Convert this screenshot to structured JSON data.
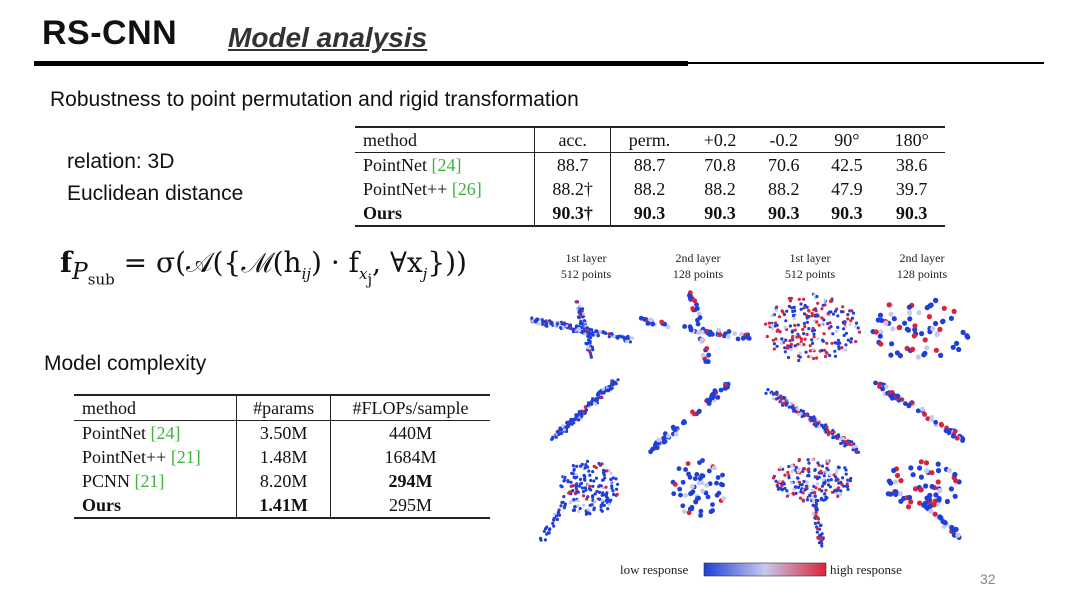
{
  "title": "RS-CNN",
  "subtitle": "Model analysis",
  "section_robustness": "Robustness to point permutation and rigid transformation",
  "relation_line1": "relation: 3D",
  "relation_line2": "Euclidean distance",
  "formula": {
    "lhs": "f",
    "lhs_sub": "P",
    "lhs_subsub": "sub",
    "rhs": "= σ(𝒜({ℳ(h",
    "rhs_sub1": "ij",
    "rhs_mid": ") · f",
    "rhs_sub2": "x",
    "rhs_sub2b": "j",
    "rhs_end": ", ∀x",
    "rhs_sub3": "j",
    "rhs_close": "}))"
  },
  "robustness_table": {
    "headers": [
      "method",
      "acc.",
      "perm.",
      "+0.2",
      "-0.2",
      "90°",
      "180°"
    ],
    "rows": [
      {
        "method": "PointNet ",
        "cite": "[24]",
        "values": [
          "88.7",
          "88.7",
          "70.8",
          "70.6",
          "42.5",
          "38.6"
        ],
        "bold": false
      },
      {
        "method": "PointNet++ ",
        "cite": "[26]",
        "values": [
          "88.2†",
          "88.2",
          "88.2",
          "88.2",
          "47.9",
          "39.7"
        ],
        "bold": false
      },
      {
        "method": "Ours",
        "cite": "",
        "values": [
          "90.3†",
          "90.3",
          "90.3",
          "90.3",
          "90.3",
          "90.3"
        ],
        "bold": true
      }
    ]
  },
  "section_complexity": "Model complexity",
  "complexity_table": {
    "headers": [
      "method",
      "#params",
      "#FLOPs/sample"
    ],
    "rows": [
      {
        "method": "PointNet ",
        "cite": "[24]",
        "params": "3.50M",
        "flops": "440M",
        "params_bold": false,
        "flops_bold": false,
        "method_bold": false
      },
      {
        "method": "PointNet++ ",
        "cite": "[21]",
        "params": "1.48M",
        "flops": "1684M",
        "params_bold": false,
        "flops_bold": false,
        "method_bold": false
      },
      {
        "method": "PCNN ",
        "cite": "[21]",
        "params": "8.20M",
        "flops": "294M",
        "params_bold": false,
        "flops_bold": true,
        "method_bold": false
      },
      {
        "method": "Ours",
        "cite": "",
        "params": "1.41M",
        "flops": "295M",
        "params_bold": true,
        "flops_bold": false,
        "method_bold": true
      }
    ]
  },
  "figure": {
    "layers": [
      {
        "name": "1st layer",
        "points": "512 points"
      },
      {
        "name": "2nd layer",
        "points": "128 points"
      },
      {
        "name": "1st layer",
        "points": "512 points"
      },
      {
        "name": "2nd layer",
        "points": "128 points"
      }
    ],
    "legend_low": "low response",
    "legend_high": "high response",
    "colors": {
      "low": "#1f3fd8",
      "mid": "#c9c9ee",
      "high": "#d8243a"
    }
  },
  "page_number": "32"
}
